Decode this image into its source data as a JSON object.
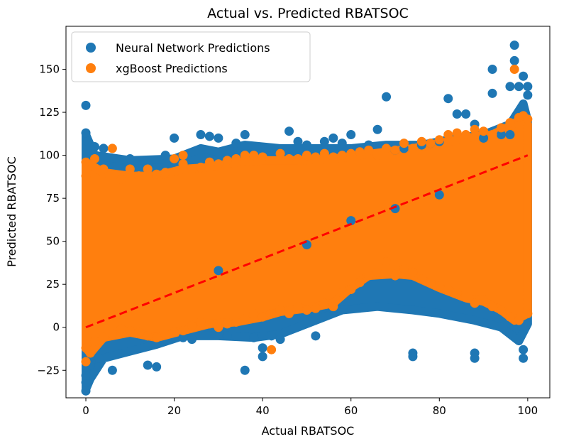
{
  "chart_data": {
    "type": "scatter",
    "title": "Actual vs. Predicted RBATSOC",
    "xlabel": "Actual RBATSOC",
    "ylabel": "Predicted RBATSOC",
    "xlim": [
      -4.5,
      105
    ],
    "ylim": [
      -41,
      175
    ],
    "xticks": [
      0,
      20,
      40,
      60,
      80,
      100
    ],
    "yticks": [
      -25,
      0,
      25,
      50,
      75,
      100,
      125,
      150
    ],
    "grid": false,
    "legend_position": "top-left",
    "series": [
      {
        "name": "Neural Network Predictions",
        "color": "#1f77b4",
        "marker": "circle",
        "points": [
          [
            0,
            129
          ],
          [
            0,
            113
          ],
          [
            0,
            -37
          ],
          [
            0,
            -32
          ],
          [
            0,
            -28
          ],
          [
            0.5,
            108
          ],
          [
            1,
            -22
          ],
          [
            2,
            105
          ],
          [
            3,
            -18
          ],
          [
            4,
            104
          ],
          [
            6,
            -25
          ],
          [
            10,
            98
          ],
          [
            14,
            -22
          ],
          [
            16,
            -23
          ],
          [
            18,
            100
          ],
          [
            20,
            110
          ],
          [
            22,
            -6
          ],
          [
            24,
            -7
          ],
          [
            26,
            112
          ],
          [
            28,
            111
          ],
          [
            30,
            110
          ],
          [
            32,
            -5
          ],
          [
            34,
            107
          ],
          [
            36,
            112
          ],
          [
            36,
            -25
          ],
          [
            38,
            -6
          ],
          [
            40,
            -17
          ],
          [
            40,
            -12
          ],
          [
            42,
            -5
          ],
          [
            44,
            -7
          ],
          [
            46,
            114
          ],
          [
            48,
            108
          ],
          [
            50,
            106
          ],
          [
            52,
            -5
          ],
          [
            54,
            108
          ],
          [
            56,
            110
          ],
          [
            56,
            10
          ],
          [
            58,
            107
          ],
          [
            60,
            112
          ],
          [
            62,
            104
          ],
          [
            64,
            106
          ],
          [
            66,
            115
          ],
          [
            68,
            134
          ],
          [
            70,
            103
          ],
          [
            72,
            104
          ],
          [
            74,
            -15
          ],
          [
            74,
            -17
          ],
          [
            76,
            106
          ],
          [
            78,
            107
          ],
          [
            80,
            108
          ],
          [
            82,
            133
          ],
          [
            84,
            124
          ],
          [
            86,
            124
          ],
          [
            88,
            118
          ],
          [
            88,
            -15
          ],
          [
            88,
            -18
          ],
          [
            90,
            110
          ],
          [
            92,
            136
          ],
          [
            92,
            150
          ],
          [
            94,
            112
          ],
          [
            96,
            112
          ],
          [
            96,
            140
          ],
          [
            97,
            164
          ],
          [
            97,
            155
          ],
          [
            98,
            140
          ],
          [
            99,
            146
          ],
          [
            99,
            -13
          ],
          [
            99,
            -18
          ],
          [
            100,
            140
          ],
          [
            100,
            135
          ],
          [
            60,
            62
          ],
          [
            70,
            69
          ],
          [
            80,
            77
          ],
          [
            50,
            48
          ],
          [
            30,
            33
          ]
        ]
      },
      {
        "name": "xgBoost Predictions",
        "color": "#ff7f0e",
        "marker": "circle",
        "points": [
          [
            0,
            96
          ],
          [
            0,
            88
          ],
          [
            0,
            -12
          ],
          [
            0,
            -20
          ],
          [
            2,
            98
          ],
          [
            4,
            92
          ],
          [
            6,
            104
          ],
          [
            8,
            86
          ],
          [
            10,
            92
          ],
          [
            12,
            88
          ],
          [
            14,
            92
          ],
          [
            16,
            89
          ],
          [
            18,
            90
          ],
          [
            20,
            98
          ],
          [
            22,
            95
          ],
          [
            22,
            100
          ],
          [
            24,
            92
          ],
          [
            26,
            93
          ],
          [
            28,
            96
          ],
          [
            30,
            95
          ],
          [
            32,
            97
          ],
          [
            34,
            98
          ],
          [
            36,
            100
          ],
          [
            38,
            100
          ],
          [
            40,
            99
          ],
          [
            42,
            -13
          ],
          [
            44,
            101
          ],
          [
            46,
            98
          ],
          [
            48,
            98
          ],
          [
            50,
            100
          ],
          [
            52,
            99
          ],
          [
            54,
            101
          ],
          [
            56,
            99
          ],
          [
            58,
            100
          ],
          [
            60,
            101
          ],
          [
            62,
            102
          ],
          [
            64,
            103
          ],
          [
            66,
            100
          ],
          [
            68,
            104
          ],
          [
            70,
            103
          ],
          [
            72,
            107
          ],
          [
            74,
            104
          ],
          [
            76,
            108
          ],
          [
            78,
            107
          ],
          [
            80,
            109
          ],
          [
            82,
            112
          ],
          [
            84,
            113
          ],
          [
            86,
            112
          ],
          [
            88,
            115
          ],
          [
            90,
            114
          ],
          [
            92,
            112
          ],
          [
            94,
            116
          ],
          [
            96,
            119
          ],
          [
            97,
            150
          ],
          [
            98,
            122
          ],
          [
            99,
            123
          ],
          [
            100,
            121
          ],
          [
            100,
            8
          ],
          [
            98,
            4
          ],
          [
            96,
            6
          ],
          [
            94,
            10
          ],
          [
            92,
            12
          ],
          [
            90,
            16
          ],
          [
            88,
            14
          ],
          [
            86,
            18
          ],
          [
            84,
            20
          ],
          [
            82,
            22
          ],
          [
            80,
            24
          ],
          [
            78,
            26
          ],
          [
            76,
            28
          ],
          [
            74,
            32
          ],
          [
            72,
            34
          ],
          [
            70,
            30
          ],
          [
            68,
            38
          ],
          [
            66,
            32
          ],
          [
            64,
            30
          ],
          [
            62,
            26
          ],
          [
            60,
            22
          ],
          [
            58,
            20
          ],
          [
            56,
            12
          ],
          [
            54,
            14
          ],
          [
            52,
            11
          ],
          [
            50,
            10
          ],
          [
            48,
            12
          ],
          [
            46,
            8
          ],
          [
            44,
            10
          ],
          [
            42,
            8
          ],
          [
            40,
            6
          ],
          [
            38,
            8
          ],
          [
            36,
            5
          ],
          [
            34,
            3
          ],
          [
            32,
            2
          ],
          [
            30,
            0
          ],
          [
            28,
            2
          ],
          [
            26,
            3
          ],
          [
            24,
            1
          ],
          [
            22,
            -2
          ],
          [
            20,
            -3
          ],
          [
            18,
            -4
          ],
          [
            16,
            -6
          ],
          [
            14,
            -5
          ],
          [
            12,
            -3
          ],
          [
            10,
            -2
          ],
          [
            8,
            -1
          ],
          [
            6,
            -4
          ],
          [
            4,
            -6
          ],
          [
            2,
            -8
          ],
          [
            1,
            -15
          ]
        ]
      }
    ],
    "reference_line": {
      "style": "dashed",
      "color": "#ff0000",
      "from": [
        0,
        0
      ],
      "to": [
        100,
        100
      ]
    }
  }
}
